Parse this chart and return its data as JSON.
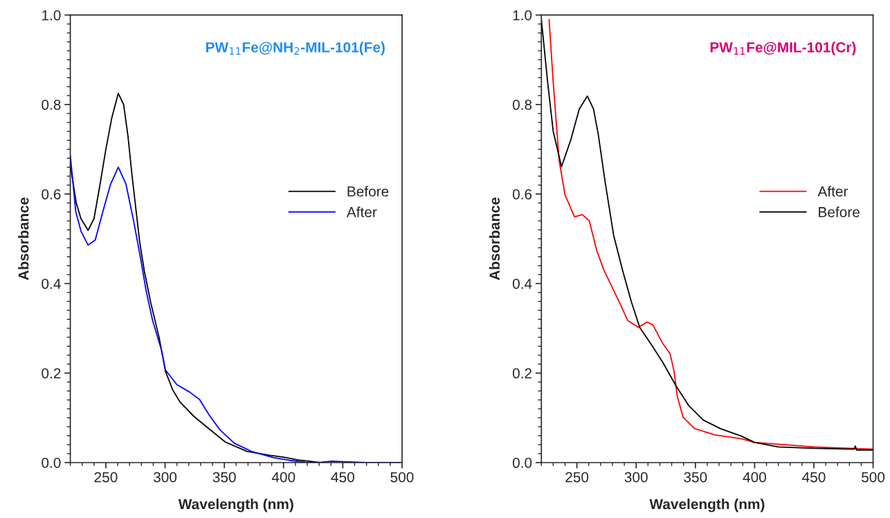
{
  "chart_data": [
    {
      "type": "line",
      "title": "PW$_{11}$Fe@NH$_{2}$-MIL-101(Fe)",
      "xlabel": "Wavelength (nm)",
      "ylabel": "Absorbance",
      "xlim": [
        220,
        500
      ],
      "xticks": [
        250,
        300,
        350,
        400,
        450,
        500
      ],
      "ylim": [
        0,
        1.0
      ],
      "yticks": [
        {
          "value": 0,
          "label": "0.0"
        },
        {
          "value": 0.2,
          "label": "0.2"
        },
        {
          "value": 0.4,
          "label": "0.4"
        },
        {
          "value": 0.6,
          "label": "0.6"
        },
        {
          "value": 0.8,
          "label": "0.8"
        },
        {
          "value": 1.0,
          "label": "1.0"
        }
      ],
      "grid": false,
      "legend": "right",
      "marker": "none",
      "line_style": "solid",
      "series": [
        {
          "name": "Before",
          "color": "#000000",
          "x": [
            220,
            225,
            229,
            235,
            240,
            245,
            250,
            255,
            260.5,
            265,
            268.7,
            272,
            278.5,
            282.4,
            288,
            295,
            300.3,
            306.5,
            312.7,
            324,
            336.4,
            350.8,
            369.3,
            389,
            400,
            412,
            425,
            430
          ],
          "values": [
            0.665,
            0.58,
            0.545,
            0.519,
            0.545,
            0.62,
            0.7,
            0.77,
            0.825,
            0.8,
            0.729,
            0.644,
            0.494,
            0.429,
            0.356,
            0.279,
            0.204,
            0.162,
            0.135,
            0.104,
            0.077,
            0.046,
            0.025,
            0.016,
            0.012,
            0.006,
            0.002,
            0.0
          ]
        },
        {
          "name": "After",
          "color": "#0000ff",
          "x": [
            220,
            224.6,
            229,
            235,
            241,
            248,
            254,
            260.5,
            267,
            273.5,
            279,
            284,
            289.5,
            297,
            300.3,
            310,
            320.5,
            329,
            337,
            346,
            358.5,
            373,
            391.5,
            405,
            420,
            432,
            440,
            450,
            470,
            500
          ],
          "values": [
            0.686,
            0.561,
            0.517,
            0.486,
            0.497,
            0.566,
            0.622,
            0.66,
            0.622,
            0.539,
            0.461,
            0.384,
            0.317,
            0.251,
            0.207,
            0.174,
            0.158,
            0.141,
            0.107,
            0.074,
            0.043,
            0.025,
            0.011,
            0.005,
            0.0,
            0.001,
            0.003,
            0.002,
            0.0,
            0.0
          ]
        }
      ]
    },
    {
      "type": "line",
      "title": "PW$_{11}$Fe@MIL-101(Cr)",
      "xlabel": "Wavelength (nm)",
      "ylabel": "Absorbance",
      "xlim": [
        220,
        500
      ],
      "xticks": [
        250,
        300,
        350,
        400,
        450,
        500
      ],
      "ylim": [
        0,
        1.0
      ],
      "yticks": [
        {
          "value": 0,
          "label": "0.0"
        },
        {
          "value": 0.2,
          "label": "0.2"
        },
        {
          "value": 0.4,
          "label": "0.4"
        },
        {
          "value": 0.6,
          "label": "0.6"
        },
        {
          "value": 0.8,
          "label": "0.8"
        },
        {
          "value": 1.0,
          "label": "1.0"
        }
      ],
      "grid": false,
      "legend": "right",
      "marker": "none",
      "line_style": "solid",
      "series": [
        {
          "name": "After",
          "color": "#ff0000",
          "x": [
            226.5,
            230,
            235,
            240,
            248,
            254.5,
            260.5,
            266.6,
            272.8,
            285,
            293,
            302,
            309,
            314,
            322.5,
            328.7,
            332,
            334.8,
            339.7,
            349.4,
            366,
            389,
            400,
            450,
            500
          ],
          "values": [
            0.99,
            0.85,
            0.675,
            0.598,
            0.549,
            0.554,
            0.54,
            0.475,
            0.43,
            0.363,
            0.317,
            0.302,
            0.314,
            0.308,
            0.266,
            0.243,
            0.204,
            0.147,
            0.101,
            0.076,
            0.062,
            0.053,
            0.045,
            0.035,
            0.03
          ]
        },
        {
          "name": "Before",
          "color": "#000000",
          "x": [
            220,
            225.3,
            230,
            237,
            244.7,
            252,
            258.8,
            264,
            268,
            274,
            281,
            288.5,
            296,
            303,
            313,
            322.5,
            333.5,
            344.5,
            356.7,
            371,
            389,
            400,
            420,
            450,
            484,
            485,
            486,
            500
          ],
          "values": [
            0.99,
            0.85,
            0.74,
            0.661,
            0.72,
            0.79,
            0.819,
            0.79,
            0.734,
            0.624,
            0.508,
            0.43,
            0.359,
            0.302,
            0.263,
            0.224,
            0.172,
            0.127,
            0.095,
            0.076,
            0.059,
            0.045,
            0.035,
            0.032,
            0.03,
            0.037,
            0.028,
            0.028
          ]
        }
      ]
    }
  ]
}
